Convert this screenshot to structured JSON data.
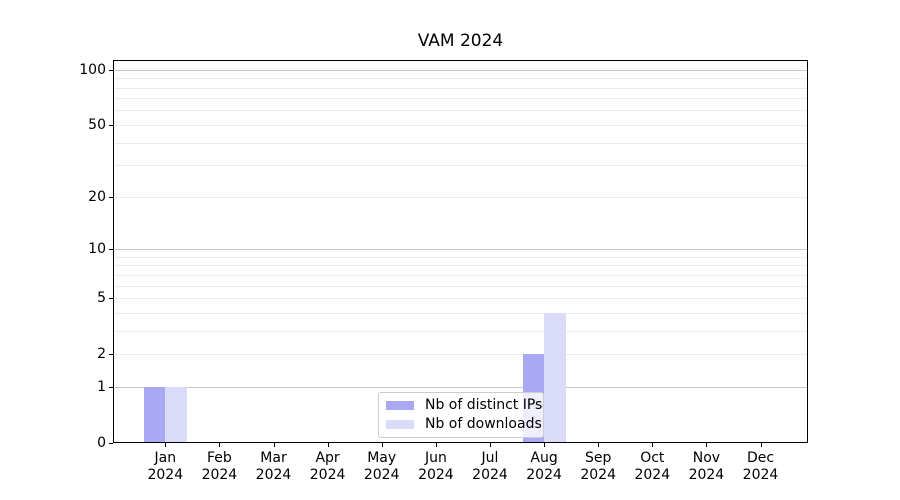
{
  "chart_data": {
    "type": "bar",
    "title": "VAM 2024",
    "categories": [
      "Jan 2024",
      "Feb 2024",
      "Mar 2024",
      "Apr 2024",
      "May 2024",
      "Jun 2024",
      "Jul 2024",
      "Aug 2024",
      "Sep 2024",
      "Oct 2024",
      "Nov 2024",
      "Dec 2024"
    ],
    "month_labels": [
      "Jan",
      "Feb",
      "Mar",
      "Apr",
      "May",
      "Jun",
      "Jul",
      "Aug",
      "Sep",
      "Oct",
      "Nov",
      "Dec"
    ],
    "year_label": "2024",
    "series": [
      {
        "name": "Nb of distinct IPs",
        "color": "#a9a9f3",
        "values": [
          1,
          0,
          0,
          0,
          0,
          0,
          0,
          2,
          0,
          0,
          0,
          0
        ]
      },
      {
        "name": "Nb of downloads",
        "color": "#dadaf9",
        "values": [
          1,
          0,
          0,
          0,
          0,
          0,
          0,
          4,
          0,
          0,
          0,
          0
        ]
      }
    ],
    "y_axis": {
      "scale": "log1p",
      "ticks": [
        0,
        1,
        2,
        5,
        10,
        20,
        50,
        100
      ],
      "tick_labels": [
        "0",
        "1",
        "2",
        "5",
        "10",
        "20",
        "50",
        "100"
      ],
      "major_gridlines": [
        1,
        10,
        100
      ],
      "minor_gridlines": [
        2,
        3,
        4,
        5,
        6,
        7,
        8,
        9,
        20,
        30,
        40,
        50,
        60,
        70,
        80,
        90
      ],
      "ylim": [
        0,
        115
      ]
    },
    "grid": true,
    "legend_position": "inside lower center"
  }
}
